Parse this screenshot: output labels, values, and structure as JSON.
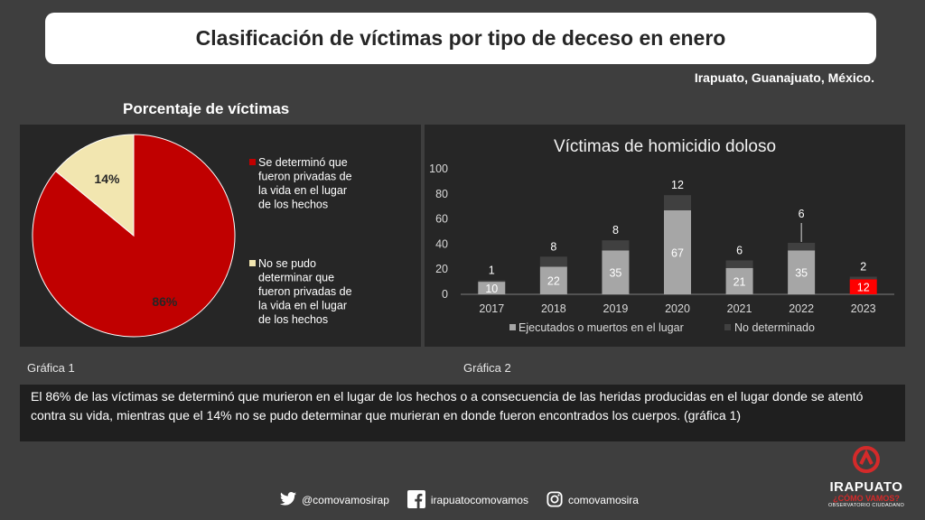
{
  "header": {
    "title": "Clasificación de víctimas por tipo de deceso en enero",
    "location": "Irapuato, Guanajuato, México."
  },
  "colors": {
    "red": "#c00000",
    "cream": "#f2e6b0",
    "bar_light": "#a6a6a6",
    "bar_dark": "#404040",
    "bar_2023": "#ff0000",
    "panel_bg": "#262626",
    "page_bg": "#3e3e3e"
  },
  "pie": {
    "heading": "Porcentaje de víctimas",
    "caption": "Gráfica 1"
  },
  "bars": {
    "caption": "Gráfica 2"
  },
  "chart_data": [
    {
      "type": "pie",
      "title": "Porcentaje de víctimas",
      "slices": [
        {
          "label": "Se determinó que fueron privadas de la vida en el lugar de los hechos",
          "value": 86,
          "data_label": "86%",
          "color": "#c00000"
        },
        {
          "label": "No se pudo determinar que fueron privadas de la vida en el lugar de los hechos",
          "value": 14,
          "data_label": "14%",
          "color": "#f2e6b0"
        }
      ],
      "legend_position": "right"
    },
    {
      "type": "bar",
      "stacked": true,
      "title": "Víctimas de homicidio doloso",
      "categories": [
        "2017",
        "2018",
        "2019",
        "2020",
        "2021",
        "2022",
        "2023"
      ],
      "series": [
        {
          "name": "Ejecutados o muertos en el lugar",
          "values": [
            10,
            22,
            35,
            67,
            21,
            35,
            12
          ],
          "color": "#a6a6a6"
        },
        {
          "name": "No determinado",
          "values": [
            1,
            8,
            8,
            12,
            6,
            6,
            2
          ],
          "color": "#404040"
        }
      ],
      "highlight_category": "2023",
      "highlight_color": "#ff0000",
      "ylim": [
        0,
        100
      ],
      "yticks": [
        0,
        20,
        40,
        60,
        80,
        100
      ],
      "grid": false,
      "legend_position": "bottom"
    }
  ],
  "summary": {
    "text": "El 86% de las víctimas se determinó que murieron en el lugar de los hechos o a consecuencia de las heridas producidas en el lugar donde se atentó contra su vida, mientras que el 14% no se pudo determinar que murieran en donde fueron encontrados los cuerpos. (gráfica 1)"
  },
  "footer": {
    "twitter": "@comovamosirap",
    "facebook": "irapuatocomovamos",
    "instagram": "comovamosira",
    "twitter_icon": "twitter-icon",
    "facebook_icon": "facebook-icon",
    "instagram_icon": "instagram-icon"
  },
  "logo": {
    "brand": "IRAPUATO",
    "tagline": "¿CÓMO VAMOS?",
    "subtitle": "OBSERVATORIO CIUDADANO"
  }
}
